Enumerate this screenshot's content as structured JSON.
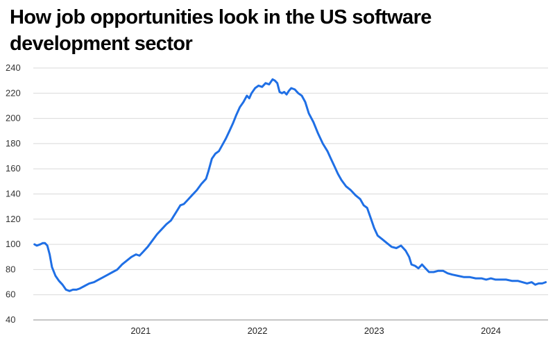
{
  "chart_data": {
    "type": "line",
    "title": "How job opportunities look in the US software development sector",
    "xlabel": "",
    "ylabel": "",
    "ylim": [
      40,
      240
    ],
    "yticks": [
      40,
      60,
      80,
      100,
      120,
      140,
      160,
      180,
      200,
      220,
      240
    ],
    "xlim": [
      2020.08,
      2024.49
    ],
    "xticks": [
      2021,
      2022,
      2023,
      2024
    ],
    "grid": true,
    "color": "#1f6fe5",
    "series": [
      {
        "name": "",
        "points": [
          [
            2020.09,
            100
          ],
          [
            2020.11,
            99
          ],
          [
            2020.14,
            100
          ],
          [
            2020.16,
            101
          ],
          [
            2020.18,
            101
          ],
          [
            2020.2,
            99
          ],
          [
            2020.22,
            92
          ],
          [
            2020.24,
            82
          ],
          [
            2020.27,
            75
          ],
          [
            2020.3,
            71
          ],
          [
            2020.33,
            68
          ],
          [
            2020.36,
            64
          ],
          [
            2020.39,
            63
          ],
          [
            2020.42,
            64
          ],
          [
            2020.45,
            64
          ],
          [
            2020.48,
            65
          ],
          [
            2020.52,
            67
          ],
          [
            2020.56,
            69
          ],
          [
            2020.6,
            70
          ],
          [
            2020.64,
            72
          ],
          [
            2020.68,
            74
          ],
          [
            2020.72,
            76
          ],
          [
            2020.76,
            78
          ],
          [
            2020.8,
            80
          ],
          [
            2020.84,
            84
          ],
          [
            2020.88,
            87
          ],
          [
            2020.92,
            90
          ],
          [
            2020.96,
            92
          ],
          [
            2020.99,
            91
          ],
          [
            2021.02,
            94
          ],
          [
            2021.06,
            98
          ],
          [
            2021.1,
            103
          ],
          [
            2021.14,
            108
          ],
          [
            2021.18,
            112
          ],
          [
            2021.22,
            116
          ],
          [
            2021.26,
            119
          ],
          [
            2021.3,
            125
          ],
          [
            2021.34,
            131
          ],
          [
            2021.37,
            132
          ],
          [
            2021.4,
            135
          ],
          [
            2021.44,
            139
          ],
          [
            2021.48,
            143
          ],
          [
            2021.52,
            148
          ],
          [
            2021.56,
            152
          ],
          [
            2021.58,
            158
          ],
          [
            2021.61,
            168
          ],
          [
            2021.64,
            172
          ],
          [
            2021.67,
            174
          ],
          [
            2021.7,
            179
          ],
          [
            2021.73,
            184
          ],
          [
            2021.76,
            190
          ],
          [
            2021.79,
            196
          ],
          [
            2021.82,
            203
          ],
          [
            2021.85,
            209
          ],
          [
            2021.88,
            213
          ],
          [
            2021.91,
            218
          ],
          [
            2021.93,
            216
          ],
          [
            2021.95,
            220
          ],
          [
            2021.98,
            224
          ],
          [
            2022.01,
            226
          ],
          [
            2022.04,
            225
          ],
          [
            2022.07,
            228
          ],
          [
            2022.1,
            227
          ],
          [
            2022.13,
            231
          ],
          [
            2022.15,
            230
          ],
          [
            2022.17,
            228
          ],
          [
            2022.19,
            221
          ],
          [
            2022.21,
            220
          ],
          [
            2022.23,
            221
          ],
          [
            2022.25,
            219
          ],
          [
            2022.27,
            222
          ],
          [
            2022.29,
            224
          ],
          [
            2022.32,
            223
          ],
          [
            2022.35,
            220
          ],
          [
            2022.38,
            218
          ],
          [
            2022.41,
            213
          ],
          [
            2022.44,
            204
          ],
          [
            2022.48,
            197
          ],
          [
            2022.52,
            188
          ],
          [
            2022.56,
            180
          ],
          [
            2022.6,
            174
          ],
          [
            2022.63,
            168
          ],
          [
            2022.66,
            162
          ],
          [
            2022.69,
            156
          ],
          [
            2022.72,
            151
          ],
          [
            2022.76,
            146
          ],
          [
            2022.8,
            143
          ],
          [
            2022.84,
            139
          ],
          [
            2022.88,
            136
          ],
          [
            2022.91,
            131
          ],
          [
            2022.94,
            129
          ],
          [
            2022.97,
            121
          ],
          [
            2023.0,
            113
          ],
          [
            2023.03,
            107
          ],
          [
            2023.07,
            104
          ],
          [
            2023.11,
            101
          ],
          [
            2023.15,
            98
          ],
          [
            2023.19,
            97
          ],
          [
            2023.23,
            99
          ],
          [
            2023.27,
            95
          ],
          [
            2023.3,
            90
          ],
          [
            2023.32,
            84
          ],
          [
            2023.35,
            83
          ],
          [
            2023.38,
            81
          ],
          [
            2023.41,
            84
          ],
          [
            2023.44,
            81
          ],
          [
            2023.47,
            78
          ],
          [
            2023.51,
            78
          ],
          [
            2023.55,
            79
          ],
          [
            2023.59,
            79
          ],
          [
            2023.63,
            77
          ],
          [
            2023.67,
            76
          ],
          [
            2023.72,
            75
          ],
          [
            2023.77,
            74
          ],
          [
            2023.82,
            74
          ],
          [
            2023.87,
            73
          ],
          [
            2023.92,
            73
          ],
          [
            2023.96,
            72
          ],
          [
            2024.0,
            73
          ],
          [
            2024.04,
            72
          ],
          [
            2024.08,
            72
          ],
          [
            2024.13,
            72
          ],
          [
            2024.18,
            71
          ],
          [
            2024.23,
            71
          ],
          [
            2024.27,
            70
          ],
          [
            2024.31,
            69
          ],
          [
            2024.35,
            70
          ],
          [
            2024.38,
            68
          ],
          [
            2024.41,
            69
          ],
          [
            2024.44,
            69
          ],
          [
            2024.47,
            70
          ]
        ]
      }
    ]
  }
}
